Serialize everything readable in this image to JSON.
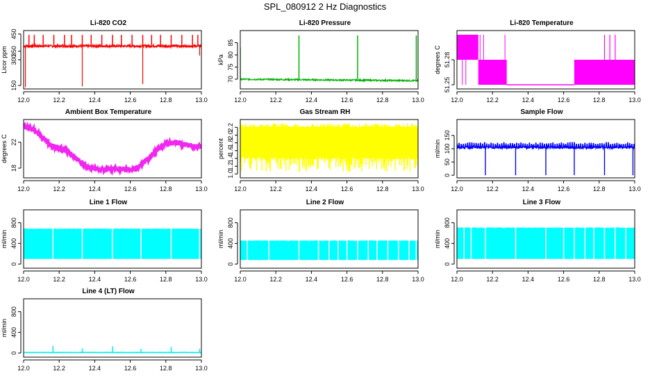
{
  "page": {
    "title": "SPL_080912  2 Hz Diagnostics"
  },
  "chart_data": [
    {
      "id": "co2",
      "type": "line",
      "title": "Li-820 CO2",
      "ylabel": "Licor ppm",
      "color": "#ff0000",
      "xlim": [
        12.0,
        13.0
      ],
      "ylim": [
        130,
        470
      ],
      "xticks": [
        "12.0",
        "12.2",
        "12.4",
        "12.6",
        "12.8",
        "13.0"
      ],
      "yticks": [
        150,
        300,
        350,
        450
      ],
      "baseline": 380,
      "noise": 6,
      "spikes_up": [
        12.03,
        12.06,
        12.11,
        12.17,
        12.23,
        12.27,
        12.33,
        12.38,
        12.44,
        12.5,
        12.55,
        12.61,
        12.67,
        12.72,
        12.77,
        12.83,
        12.89,
        12.95,
        12.98
      ],
      "spike_up_to": 445,
      "spikes_down": [
        [
          12.01,
          140
        ],
        [
          12.33,
          145
        ],
        [
          12.67,
          158
        ],
        [
          12.99,
          325
        ]
      ]
    },
    {
      "id": "pressure",
      "type": "line",
      "title": "Li-820 Pressure",
      "ylabel": "kPa",
      "color": "#00b000",
      "xlim": [
        12.0,
        13.0
      ],
      "ylim": [
        66,
        90
      ],
      "xticks": [
        "12.0",
        "12.2",
        "12.4",
        "12.6",
        "12.8",
        "13.0"
      ],
      "yticks": [
        70,
        75,
        80,
        85
      ],
      "baseline_start": 70.0,
      "baseline_end": 69.4,
      "noise": 0.3,
      "spikes_up": [
        [
          12.0,
          83
        ],
        [
          12.33,
          88
        ],
        [
          12.66,
          88
        ],
        [
          12.99,
          88
        ]
      ]
    },
    {
      "id": "licor-temp",
      "type": "step",
      "title": "Li-820 Temperature",
      "ylabel": "degrees C",
      "color": "#ff00ff",
      "xlim": [
        12.0,
        13.0
      ],
      "ylim": [
        51.245,
        51.315
      ],
      "xticks": [
        "12.0",
        "12.2",
        "12.4",
        "12.6",
        "12.8",
        "13.0"
      ],
      "yticks": [
        51.25,
        51.28
      ],
      "ytick_labels": [
        "51.25",
        "51.28"
      ],
      "bands": [
        [
          12.0,
          12.12,
          51.28,
          51.31
        ],
        [
          12.12,
          12.28,
          51.25,
          51.28
        ],
        [
          12.66,
          13.0,
          51.25,
          51.28
        ]
      ],
      "floor": 51.25,
      "floor_range": [
        12.28,
        12.66
      ],
      "spikes_up": [
        [
          12.83,
          51.31
        ],
        [
          12.86,
          51.31
        ],
        [
          12.89,
          51.31
        ]
      ]
    },
    {
      "id": "box-temp",
      "type": "line",
      "title": "Ambient Box Temperature",
      "ylabel": "degrees C",
      "color": "#ee00ee",
      "xlim": [
        12.0,
        13.0
      ],
      "ylim": [
        16.5,
        25.5
      ],
      "xticks": [
        "12.0",
        "12.2",
        "12.4",
        "12.6",
        "12.8",
        "13.0"
      ],
      "yticks": [
        18,
        22
      ],
      "x": [
        12.0,
        12.05,
        12.1,
        12.15,
        12.2,
        12.25,
        12.3,
        12.35,
        12.4,
        12.45,
        12.5,
        12.55,
        12.6,
        12.65,
        12.7,
        12.75,
        12.8,
        12.85,
        12.9,
        12.95,
        13.0
      ],
      "y": [
        24.6,
        24.0,
        22.9,
        21.6,
        21.1,
        20.6,
        19.4,
        18.3,
        17.9,
        17.8,
        17.9,
        17.9,
        17.8,
        18.2,
        19.4,
        20.8,
        21.8,
        21.9,
        21.7,
        21.4,
        21.3
      ],
      "noise": 0.35
    },
    {
      "id": "rh",
      "type": "band",
      "title": "Gas Stream RH",
      "ylabel": "percent",
      "color": "#ffff00",
      "xlim": [
        12.0,
        13.0
      ],
      "ylim": [
        0.9,
        2.4
      ],
      "xticks": [
        "12.0",
        "12.2",
        "12.4",
        "12.6",
        "12.8",
        "13.0"
      ],
      "yticks": [
        1.0,
        1.2,
        1.4,
        1.6,
        1.8,
        2.0,
        2.2
      ],
      "ytick_labels": [
        "1.0",
        "1.2",
        "1.4",
        "1.6",
        "1.8",
        "2.0",
        "2.2"
      ],
      "band_lo": 1.45,
      "band_hi": 2.2,
      "extreme_lo": 1.05,
      "extreme_hi": 2.3
    },
    {
      "id": "sample-flow",
      "type": "line",
      "title": "Sample Flow",
      "ylabel": "ml/min",
      "color": "#0000ff",
      "xlim": [
        12.0,
        13.0
      ],
      "ylim": [
        -10,
        210
      ],
      "xticks": [
        "12.0",
        "12.2",
        "12.4",
        "12.6",
        "12.8",
        "13.0"
      ],
      "yticks": [
        0,
        50,
        100,
        150
      ],
      "baseline": 105,
      "noise": 4,
      "spike_every": 0.025,
      "spike_up_to": 125,
      "drops": [
        12.16,
        12.33,
        12.5,
        12.66,
        12.83,
        12.99
      ]
    },
    {
      "id": "line1",
      "type": "band",
      "title": "Line 1 Flow",
      "ylabel": "ml/min",
      "color": "#00ffff",
      "xlim": [
        12.0,
        13.0
      ],
      "ylim": [
        -80,
        1050
      ],
      "xticks": [
        "12.0",
        "12.2",
        "12.4",
        "12.6",
        "12.8",
        "13.0"
      ],
      "yticks": [
        0,
        400,
        800
      ],
      "band_lo": 100,
      "band_hi": 690,
      "gaps": [
        12.165,
        12.33,
        12.5,
        12.66,
        12.83,
        12.99
      ]
    },
    {
      "id": "line2",
      "type": "band",
      "title": "Line 2 Flow",
      "ylabel": "ml/min",
      "color": "#00ffff",
      "xlim": [
        12.0,
        13.0
      ],
      "ylim": [
        -80,
        1050
      ],
      "xticks": [
        "12.0",
        "12.2",
        "12.4",
        "12.6",
        "12.8",
        "13.0"
      ],
      "yticks": [
        0,
        400,
        800
      ],
      "band_lo": 80,
      "band_hi": 460,
      "gaps": [
        12.04,
        12.16,
        12.33,
        12.44,
        12.5,
        12.55,
        12.6,
        12.66,
        12.72,
        12.77,
        12.83,
        12.89,
        12.95,
        12.99
      ]
    },
    {
      "id": "line3",
      "type": "band",
      "title": "Line 3 Flow",
      "ylabel": "ml/min",
      "color": "#00ffff",
      "xlim": [
        12.0,
        13.0
      ],
      "ylim": [
        -80,
        1050
      ],
      "xticks": [
        "12.0",
        "12.2",
        "12.4",
        "12.6",
        "12.8",
        "13.0"
      ],
      "yticks": [
        0,
        400,
        800
      ],
      "band_lo": 100,
      "band_hi": 710,
      "gaps": [
        12.04,
        12.08,
        12.16,
        12.33,
        12.5,
        12.6,
        12.66,
        12.72,
        12.77,
        12.83,
        12.89,
        12.95
      ]
    },
    {
      "id": "line4",
      "type": "line",
      "title": "Line 4 (LT) Flow",
      "ylabel": "ml/min",
      "color": "#00eeee",
      "xlim": [
        12.0,
        13.0
      ],
      "ylim": [
        -80,
        1050
      ],
      "xticks": [
        "12.0",
        "12.2",
        "12.4",
        "12.6",
        "12.8",
        "13.0"
      ],
      "yticks": [
        0,
        400,
        800
      ],
      "baseline": 10,
      "noise": 3,
      "spikes_up": [
        [
          12.165,
          140
        ],
        [
          12.33,
          90
        ],
        [
          12.5,
          130
        ],
        [
          12.66,
          80
        ],
        [
          12.83,
          120
        ],
        [
          12.99,
          80
        ]
      ]
    }
  ]
}
